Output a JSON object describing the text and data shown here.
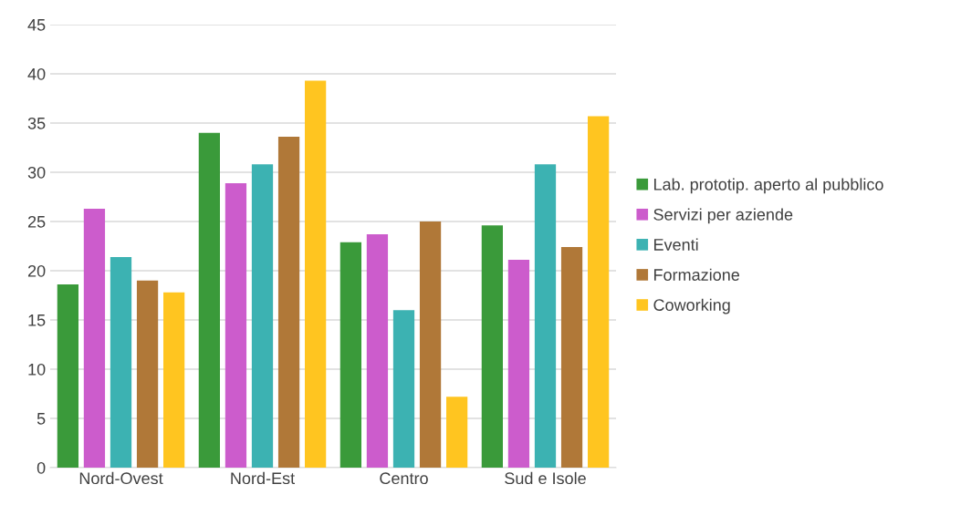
{
  "chart_data": {
    "type": "bar",
    "categories": [
      "Nord-Ovest",
      "Nord-Est",
      "Centro",
      "Sud e Isole"
    ],
    "series": [
      {
        "name": "Lab. prototip. aperto al pubblico",
        "color": "#3a9a3a",
        "values": [
          18.6,
          34.0,
          22.9,
          24.6
        ]
      },
      {
        "name": "Servizi per aziende",
        "color": "#cc5ccc",
        "values": [
          26.3,
          28.9,
          23.7,
          21.1
        ]
      },
      {
        "name": "Eventi",
        "color": "#3cb2b2",
        "values": [
          21.4,
          30.8,
          16.0,
          30.8
        ]
      },
      {
        "name": "Formazione",
        "color": "#b07838",
        "values": [
          19.0,
          33.6,
          25.0,
          22.4
        ]
      },
      {
        "name": "Coworking",
        "color": "#ffc520",
        "values": [
          17.8,
          39.3,
          7.2,
          35.7
        ]
      }
    ],
    "ylim": [
      0,
      45
    ],
    "yticks": [
      0,
      5,
      10,
      15,
      20,
      25,
      30,
      35,
      40,
      45
    ],
    "grid": "y",
    "legend": "right"
  }
}
